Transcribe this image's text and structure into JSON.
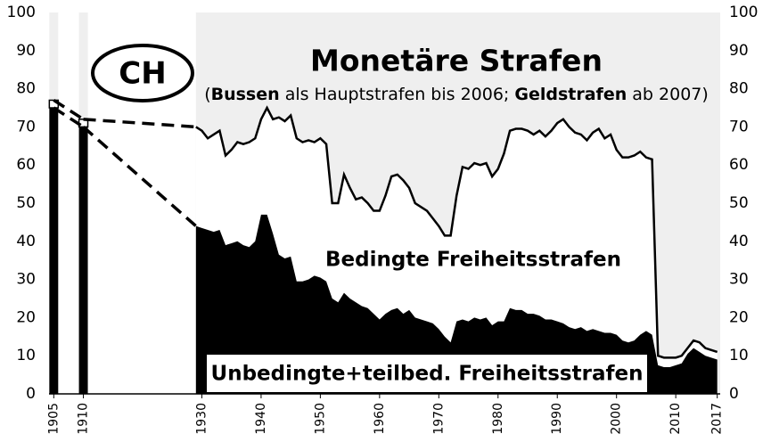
{
  "chart_data": {
    "type": "stacked-area",
    "annotations": {
      "country": "CH",
      "monetary_label": "Monetäre Strafen",
      "monetary_note": [
        "(",
        "Bussen",
        " als Hauptstrafen bis 2006; ",
        "Geldstrafen",
        " ab 2007)"
      ]
    },
    "x": [
      1905,
      1910,
      1929,
      1930,
      1931,
      1932,
      1933,
      1934,
      1935,
      1936,
      1937,
      1938,
      1939,
      1940,
      1941,
      1942,
      1943,
      1944,
      1945,
      1946,
      1947,
      1948,
      1949,
      1950,
      1951,
      1952,
      1953,
      1954,
      1955,
      1956,
      1957,
      1958,
      1959,
      1960,
      1961,
      1962,
      1963,
      1964,
      1965,
      1966,
      1967,
      1968,
      1969,
      1970,
      1971,
      1972,
      1973,
      1974,
      1975,
      1976,
      1977,
      1978,
      1979,
      1980,
      1981,
      1982,
      1983,
      1984,
      1985,
      1986,
      1987,
      1988,
      1989,
      1990,
      1991,
      1992,
      1993,
      1994,
      1995,
      1996,
      1997,
      1998,
      1999,
      2000,
      2001,
      2002,
      2003,
      2004,
      2005,
      2006,
      2007,
      2008,
      2009,
      2010,
      2011,
      2012,
      2013,
      2014,
      2015,
      2016,
      2017
    ],
    "series": [
      {
        "name": "Unbedingte+teilbed. Freiheitsstrafen",
        "color": "#000000",
        "values": [
          75,
          70,
          44,
          43.5,
          43,
          42.5,
          43,
          39,
          39.5,
          40,
          39,
          38.5,
          40,
          47,
          47,
          42,
          36.5,
          35.5,
          36,
          29.5,
          29.5,
          30,
          31,
          30.5,
          29.5,
          25,
          24,
          26.5,
          25,
          24,
          23,
          22.5,
          21,
          19.5,
          21,
          22,
          22.5,
          21,
          22,
          20,
          19.5,
          19,
          18.5,
          17,
          15,
          13.5,
          19,
          19.5,
          19,
          20,
          19.5,
          20,
          18,
          19,
          19,
          22.5,
          22,
          22,
          21,
          21,
          20.5,
          19.5,
          19.5,
          19,
          18.5,
          17.5,
          17,
          17.5,
          16.5,
          17,
          16.5,
          16,
          16,
          15.5,
          14,
          13.5,
          14,
          15.5,
          16.5,
          15.5,
          7.5,
          7,
          7,
          7.5,
          8,
          10.5,
          12,
          11,
          10,
          9.5,
          9
        ]
      },
      {
        "name": "Bedingte Freiheitsstrafen",
        "color": "#ffffff",
        "values": [
          2,
          2,
          26,
          25.5,
          24,
          25.5,
          26,
          23.5,
          24.5,
          26,
          26.5,
          27.5,
          27,
          25,
          28,
          30,
          36,
          36,
          37,
          37.5,
          36.5,
          36.5,
          35,
          36.5,
          36,
          25,
          26,
          31,
          29,
          27,
          28.5,
          27.5,
          27,
          28.5,
          31,
          35,
          35,
          35,
          32,
          30,
          29.5,
          29,
          27.5,
          27,
          26.5,
          28,
          33,
          40,
          40,
          40.5,
          40.5,
          40.5,
          39,
          40,
          44,
          46.5,
          47.5,
          47.5,
          48,
          47,
          48.5,
          48,
          49.5,
          52,
          53.5,
          52.5,
          51.5,
          50.5,
          50,
          51.5,
          53,
          51,
          52,
          48.5,
          48,
          48.5,
          48.5,
          48,
          45.5,
          46,
          2.5,
          2.5,
          2.5,
          2,
          2,
          1.5,
          2,
          2.5,
          2,
          2,
          2
        ]
      }
    ],
    "xlim": [
      1904.2,
      2017.5
    ],
    "xticks": [
      1905,
      1910,
      1930,
      1940,
      1950,
      1960,
      1970,
      1980,
      1990,
      2000,
      2010,
      2017
    ],
    "ylim": [
      0,
      100
    ],
    "yticks": [
      0,
      10,
      20,
      30,
      40,
      50,
      60,
      70,
      80,
      90,
      100
    ]
  }
}
